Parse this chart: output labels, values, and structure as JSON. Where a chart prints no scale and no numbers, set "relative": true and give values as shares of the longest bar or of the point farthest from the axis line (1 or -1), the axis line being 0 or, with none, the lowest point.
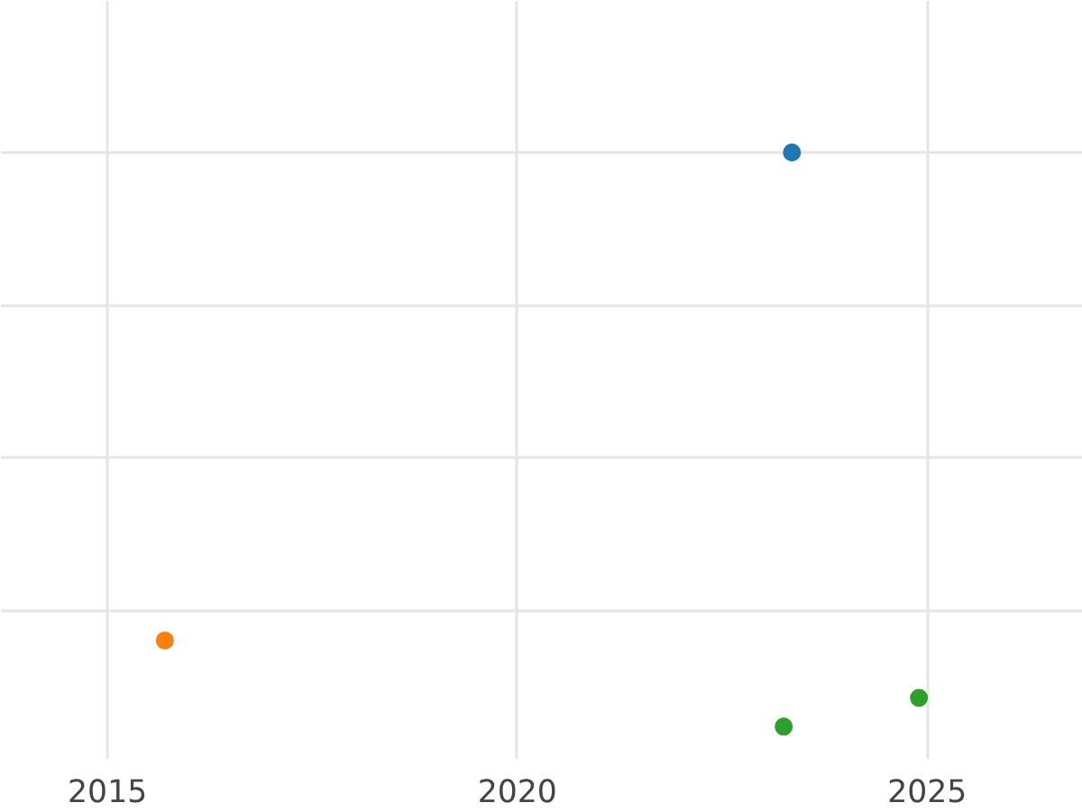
{
  "chart_data": {
    "type": "scatter",
    "relative": true,
    "xlim": [
      2013.7,
      2026.9
    ],
    "xticks": [
      2015,
      2020,
      2025
    ],
    "tick_labels": "x",
    "grid": true,
    "marker": "circle",
    "series": [
      {
        "color": "#1f77b4",
        "x": [
          2023.35
        ],
        "values": [
          1
        ]
      },
      {
        "color": "#ff7f0e",
        "x": [
          2015.7
        ],
        "values": [
          0.15
        ]
      },
      {
        "color": "#2ca02c",
        "x": [
          2023.25,
          2024.9
        ],
        "values": [
          0,
          0.05
        ]
      }
    ]
  }
}
